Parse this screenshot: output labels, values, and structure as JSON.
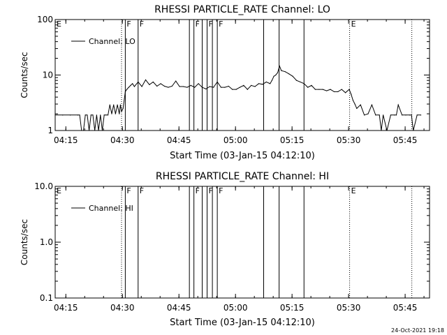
{
  "footer": {
    "timestamp": "24-Oct-2021 19:18"
  },
  "chart_data": [
    {
      "type": "line",
      "title": "RHESSI PARTICLE_RATE Channel: LO",
      "xlabel": "Start Time (03-Jan-15 04:12:10)",
      "ylabel": "Counts/sec",
      "y_scale": "log",
      "ylim": [
        1,
        100
      ],
      "xlim_minutes_from_start": [
        0,
        99.3
      ],
      "x_ticks": [
        "04:15",
        "04:30",
        "04:45",
        "05:00",
        "05:15",
        "05:30",
        "05:45"
      ],
      "x_tick_minutes": [
        2.83,
        17.83,
        32.83,
        47.83,
        62.83,
        77.83,
        92.83
      ],
      "y_ticks": [
        "1",
        "10",
        "100"
      ],
      "y_tick_values": [
        1,
        10,
        100
      ],
      "legend": {
        "label": "Channel: LO",
        "placement": "top-left"
      },
      "grid": false,
      "markers": [
        {
          "label": "E",
          "style": "dotted",
          "minute": 0
        },
        {
          "label": "F",
          "style": "solid",
          "minute": 18.6
        },
        {
          "label": "F",
          "style": "solid",
          "minute": 22.0
        },
        {
          "label": "F",
          "style": "solid",
          "minute": 36.8
        },
        {
          "label": "F",
          "style": "solid",
          "minute": 40.3
        },
        {
          "label": "F",
          "style": "solid",
          "minute": 43.0
        },
        {
          "label": "E",
          "style": "dotted",
          "minute": 78.1
        },
        {
          "label": "",
          "style": "dotted",
          "minute": 17.6
        },
        {
          "label": "",
          "style": "solid",
          "minute": 35.6
        },
        {
          "label": "",
          "style": "solid",
          "minute": 39.0
        },
        {
          "label": "",
          "style": "solid",
          "minute": 41.7
        },
        {
          "label": "",
          "style": "solid",
          "minute": 55.3
        },
        {
          "label": "",
          "style": "solid",
          "minute": 59.4
        },
        {
          "label": "",
          "style": "solid",
          "minute": 66.0
        },
        {
          "label": "",
          "style": "dotted",
          "minute": 94.6
        }
      ],
      "series": [
        {
          "name": "Channel: LO",
          "x": [
            0,
            2,
            4,
            6,
            6.5,
            7,
            7.5,
            8,
            8.5,
            9,
            9.5,
            10,
            10.5,
            11,
            11.5,
            12,
            12.5,
            13,
            13.5,
            14,
            14.5,
            15,
            15.5,
            16,
            16.5,
            17,
            17.3,
            17.6,
            18,
            18.6,
            19,
            19.5,
            20,
            20.5,
            21,
            22,
            23,
            24,
            25,
            26,
            27,
            28,
            29,
            30,
            31,
            32,
            33,
            34,
            35,
            36,
            37,
            38,
            39,
            40,
            41,
            42,
            43,
            44,
            45,
            46,
            47,
            48,
            49,
            50,
            51,
            52,
            53,
            54,
            55,
            56,
            57,
            57.5,
            58,
            58.5,
            59,
            59.5,
            60,
            61,
            62,
            63,
            64,
            65,
            66,
            67,
            68,
            69,
            70,
            71,
            72,
            73,
            74,
            75,
            76,
            77,
            78,
            78.5,
            79,
            79.5,
            80,
            81,
            82,
            83,
            84,
            85,
            86,
            86.5,
            87,
            88,
            89,
            90,
            90.5,
            91,
            92,
            93,
            94,
            94.5,
            95,
            96,
            97
          ],
          "y": [
            1.9,
            1.9,
            1.9,
            1.9,
            1.9,
            1.0,
            1.0,
            1.9,
            1.9,
            1.0,
            1.9,
            1.9,
            1.0,
            1.9,
            1.0,
            1.9,
            1.0,
            1.9,
            1.9,
            1.9,
            2.9,
            2.0,
            2.9,
            2.0,
            2.9,
            2.0,
            2.9,
            2.2,
            2.5,
            5.0,
            5.5,
            6.0,
            6.5,
            7.0,
            6.2,
            7.5,
            6.2,
            8.2,
            6.7,
            7.5,
            6.3,
            7.0,
            6.3,
            6.0,
            6.3,
            7.8,
            6.2,
            6.2,
            6.0,
            6.5,
            6.0,
            7.0,
            6.0,
            5.6,
            6.2,
            6.0,
            7.5,
            6.0,
            6.0,
            6.3,
            5.5,
            5.5,
            6.0,
            6.5,
            5.5,
            6.5,
            6.2,
            7.0,
            6.8,
            7.5,
            7.0,
            8.0,
            9.5,
            10.0,
            11.0,
            14.5,
            12.0,
            11.5,
            10.5,
            9.5,
            8.0,
            7.5,
            7.0,
            6.0,
            6.5,
            5.5,
            5.5,
            5.5,
            5.2,
            5.5,
            5.0,
            5.0,
            5.5,
            4.8,
            5.5,
            4.5,
            3.5,
            3.0,
            2.5,
            2.9,
            1.9,
            2.0,
            2.9,
            1.9,
            1.9,
            1.0,
            1.9,
            1.0,
            1.9,
            1.9,
            1.9,
            2.9,
            1.9,
            1.9,
            1.9,
            1.9,
            1.0,
            1.9,
            1.9
          ]
        }
      ]
    },
    {
      "type": "line",
      "title": "RHESSI PARTICLE_RATE Channel: HI",
      "xlabel": "Start Time (03-Jan-15 04:12:10)",
      "ylabel": "Counts/sec",
      "y_scale": "log",
      "ylim": [
        0.1,
        10
      ],
      "xlim_minutes_from_start": [
        0,
        99.3
      ],
      "x_ticks": [
        "04:15",
        "04:30",
        "04:45",
        "05:00",
        "05:15",
        "05:30",
        "05:45"
      ],
      "x_tick_minutes": [
        2.83,
        17.83,
        32.83,
        47.83,
        62.83,
        77.83,
        92.83
      ],
      "y_ticks": [
        "0.1",
        "1.0",
        "10.0"
      ],
      "y_tick_values": [
        0.1,
        1,
        10
      ],
      "legend": {
        "label": "Channel: HI",
        "placement": "top-left"
      },
      "grid": false,
      "markers": [
        {
          "label": "E",
          "style": "dotted",
          "minute": 0
        },
        {
          "label": "F",
          "style": "solid",
          "minute": 18.6
        },
        {
          "label": "F",
          "style": "solid",
          "minute": 22.0
        },
        {
          "label": "F",
          "style": "solid",
          "minute": 36.8
        },
        {
          "label": "F",
          "style": "solid",
          "minute": 40.3
        },
        {
          "label": "F",
          "style": "solid",
          "minute": 43.0
        },
        {
          "label": "E",
          "style": "dotted",
          "minute": 78.1
        },
        {
          "label": "",
          "style": "dotted",
          "minute": 17.6
        },
        {
          "label": "",
          "style": "solid",
          "minute": 35.6
        },
        {
          "label": "",
          "style": "solid",
          "minute": 39.0
        },
        {
          "label": "",
          "style": "solid",
          "minute": 41.7
        },
        {
          "label": "",
          "style": "solid",
          "minute": 55.3
        },
        {
          "label": "",
          "style": "solid",
          "minute": 59.4
        },
        {
          "label": "",
          "style": "solid",
          "minute": 66.0
        },
        {
          "label": "",
          "style": "dotted",
          "minute": 94.6
        }
      ],
      "series": [
        {
          "name": "Channel: HI",
          "x": [],
          "y": []
        }
      ]
    }
  ]
}
